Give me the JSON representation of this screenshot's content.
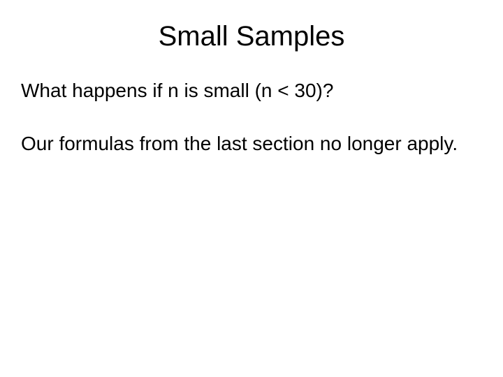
{
  "slide": {
    "title": "Small Samples",
    "paragraph1": "What happens if n is small  (n < 30)?",
    "paragraph2": "Our formulas from the last section no longer apply."
  },
  "style": {
    "background_color": "#ffffff",
    "text_color": "#000000",
    "title_fontsize": 40,
    "body_fontsize": 28,
    "font_family": "Arial"
  }
}
